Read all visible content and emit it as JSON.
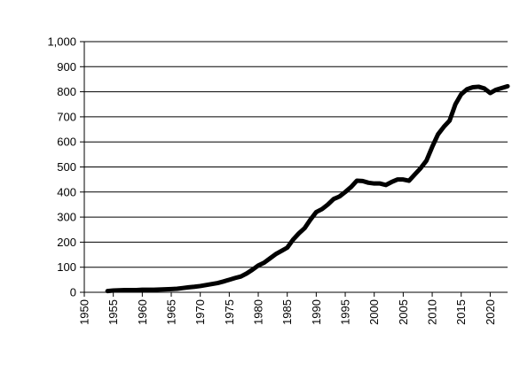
{
  "chart_data": {
    "type": "line",
    "title": "",
    "xlabel": "",
    "ylabel": "",
    "xlim": [
      1950,
      2023
    ],
    "ylim": [
      0,
      1000
    ],
    "grid": true,
    "legend": "none",
    "x_ticks": [
      "1950",
      "1955",
      "1960",
      "1965",
      "1970",
      "1975",
      "1980",
      "1985",
      "1990",
      "1995",
      "2000",
      "2005",
      "2010",
      "2015",
      "2020"
    ],
    "y_ticks": [
      "0",
      "100",
      "200",
      "300",
      "400",
      "500",
      "600",
      "700",
      "800",
      "900",
      "1,000"
    ],
    "colors": {
      "line": "#000000",
      "grid": "#000000",
      "background": "#ffffff"
    },
    "series": [
      {
        "x": [
          1954,
          1955,
          1956,
          1957,
          1958,
          1959,
          1960,
          1961,
          1962,
          1963,
          1964,
          1965,
          1966,
          1967,
          1968,
          1969,
          1970,
          1971,
          1972,
          1973,
          1974,
          1975,
          1976,
          1977,
          1978,
          1979,
          1980,
          1981,
          1982,
          1983,
          1984,
          1985,
          1986,
          1987,
          1988,
          1989,
          1990,
          1991,
          1992,
          1993,
          1994,
          1995,
          1996,
          1997,
          1998,
          1999,
          2000,
          2001,
          2002,
          2003,
          2004,
          2005,
          2006,
          2007,
          2008,
          2009,
          2010,
          2011,
          2012,
          2013,
          2014,
          2015,
          2016,
          2017,
          2018,
          2019,
          2020,
          2021,
          2022,
          2023
        ],
        "values": [
          5,
          7,
          8,
          9,
          9,
          9,
          10,
          10,
          10,
          11,
          12,
          13,
          14,
          17,
          20,
          22,
          25,
          29,
          33,
          37,
          43,
          50,
          57,
          63,
          75,
          90,
          107,
          118,
          135,
          152,
          165,
          178,
          210,
          235,
          256,
          290,
          320,
          332,
          350,
          372,
          382,
          400,
          420,
          445,
          444,
          437,
          434,
          434,
          428,
          440,
          450,
          450,
          445,
          470,
          495,
          525,
          580,
          630,
          660,
          685,
          750,
          790,
          810,
          818,
          820,
          813,
          795,
          808,
          815,
          822
        ]
      }
    ]
  }
}
